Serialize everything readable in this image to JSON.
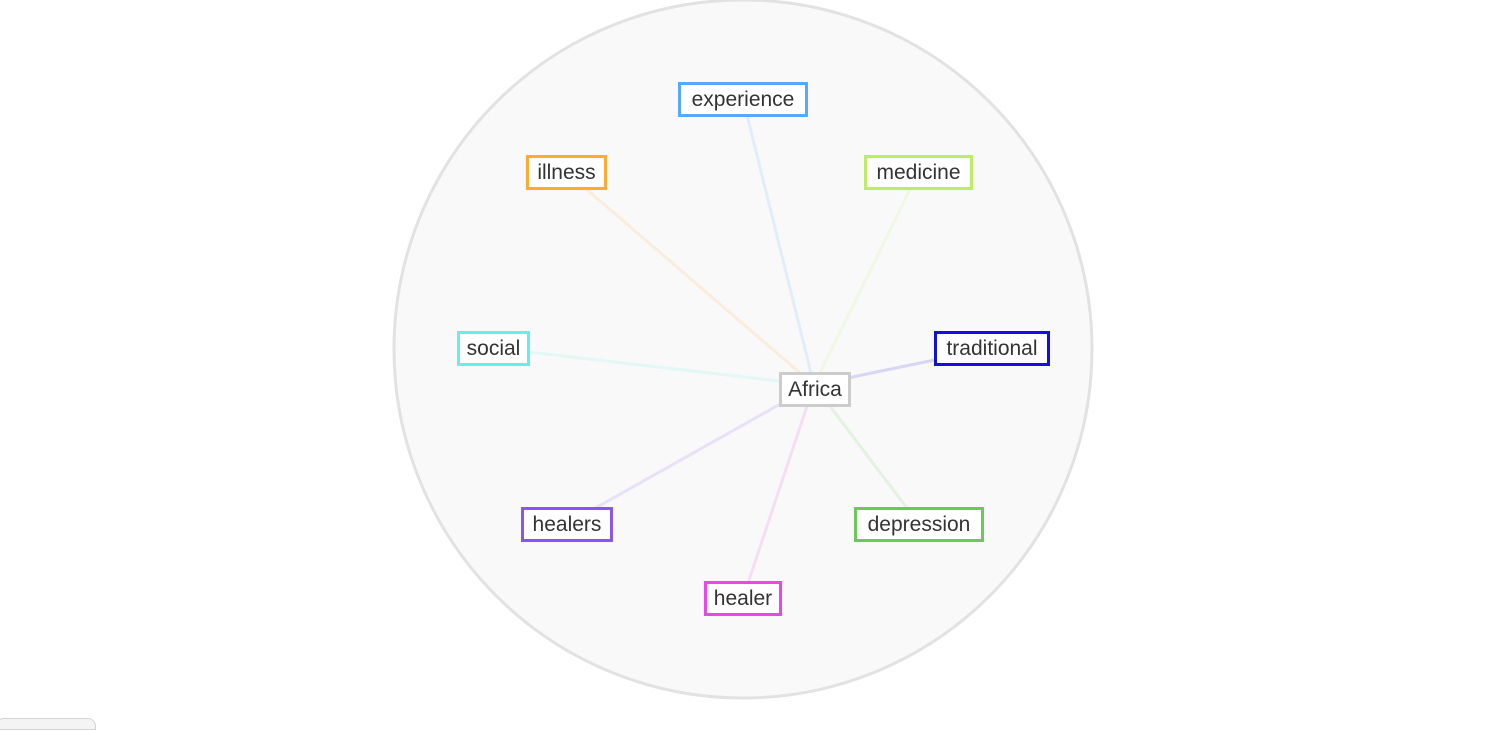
{
  "diagram": {
    "center": {
      "label": "Africa",
      "color": "#cccccc"
    },
    "terms": [
      {
        "id": "experience",
        "label": "experience",
        "color": "#55aaff"
      },
      {
        "id": "medicine",
        "label": "medicine",
        "color": "#bbee66"
      },
      {
        "id": "traditional",
        "label": "traditional",
        "color": "#1111dd"
      },
      {
        "id": "depression",
        "label": "depression",
        "color": "#66cc55"
      },
      {
        "id": "healer",
        "label": "healer",
        "color": "#ee44ee"
      },
      {
        "id": "healers",
        "label": "healers",
        "color": "#8855ee"
      },
      {
        "id": "social",
        "label": "social",
        "color": "#66eeee"
      },
      {
        "id": "illness",
        "label": "illness",
        "color": "#ffaa33"
      }
    ],
    "disc_fill": "#f9f9f9",
    "disc_stroke": "#e2e2e2"
  }
}
